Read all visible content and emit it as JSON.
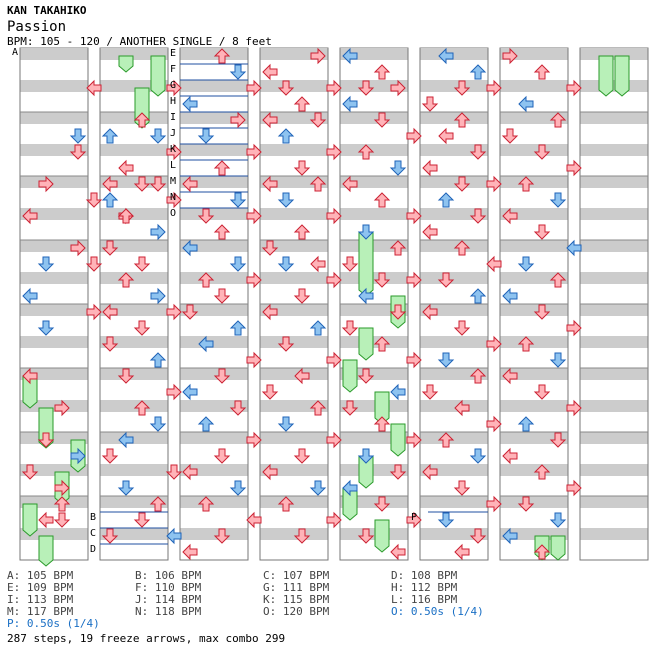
{
  "header": {
    "artist": "KAN TAKAHIKO",
    "title": "Passion",
    "info": "BPM: 105 - 120 / ANOTHER SINGLE / 8 feet"
  },
  "markers": [
    "A",
    "B",
    "C",
    "D",
    "E",
    "F",
    "G",
    "H",
    "I",
    "J",
    "K",
    "L",
    "M",
    "N",
    "O",
    "P"
  ],
  "legend": [
    {
      "text": "A: 105 BPM",
      "type": "bpm"
    },
    {
      "text": "B: 106 BPM",
      "type": "bpm"
    },
    {
      "text": "C: 107 BPM",
      "type": "bpm"
    },
    {
      "text": "D: 108 BPM",
      "type": "bpm"
    },
    {
      "text": "E: 109 BPM",
      "type": "bpm"
    },
    {
      "text": "F: 110 BPM",
      "type": "bpm"
    },
    {
      "text": "G: 111 BPM",
      "type": "bpm"
    },
    {
      "text": "H: 112 BPM",
      "type": "bpm"
    },
    {
      "text": "I: 113 BPM",
      "type": "bpm"
    },
    {
      "text": "J: 114 BPM",
      "type": "bpm"
    },
    {
      "text": "K: 115 BPM",
      "type": "bpm"
    },
    {
      "text": "L: 116 BPM",
      "type": "bpm"
    },
    {
      "text": "M: 117 BPM",
      "type": "bpm"
    },
    {
      "text": "N: 118 BPM",
      "type": "bpm"
    },
    {
      "text": "O: 120 BPM",
      "type": "bpm"
    },
    {
      "text": "O: 0.50s (1/4)",
      "type": "stop"
    },
    {
      "text": "P: 0.50s (1/4)",
      "type": "stop"
    }
  ],
  "summary": "287 steps, 19 freeze arrows, max combo 299",
  "colors": {
    "red": "#ffb3b8",
    "red_stroke": "#cc2233",
    "blue": "#8ec3f0",
    "blue_stroke": "#1f63b8",
    "freeze": "#b8f0b8",
    "freeze_stroke": "#2a9a2a",
    "band": "#cccccc",
    "line": "#1f4fa0"
  },
  "columns": [
    {
      "notes": [
        [
          1,
          8,
          "R"
        ],
        [
          4,
          2,
          "L"
        ],
        [
          3,
          5,
          "D"
        ],
        [
          5,
          5,
          "U"
        ],
        [
          3,
          6,
          "D"
        ],
        [
          4,
          9,
          "D"
        ],
        [
          5,
          9,
          "U"
        ],
        [
          6,
          10,
          "R"
        ],
        [
          0,
          10,
          "L"
        ],
        [
          3,
          12,
          "R"
        ],
        [
          1,
          13,
          "D"
        ],
        [
          4,
          13,
          "D"
        ],
        [
          0,
          15,
          "L"
        ],
        [
          1,
          17,
          "D"
        ],
        [
          4,
          16,
          "R"
        ],
        [
          0,
          20,
          "L"
        ],
        [
          2,
          22,
          "R"
        ],
        [
          1,
          24,
          "D"
        ],
        [
          0,
          26,
          "D"
        ],
        [
          3,
          25,
          "R"
        ],
        [
          2,
          27,
          "R"
        ],
        [
          2,
          28,
          "U"
        ],
        [
          1,
          29,
          "L"
        ],
        [
          2,
          29,
          "D"
        ]
      ],
      "freezes": [
        [
          0,
          20,
          22.5
        ],
        [
          1,
          22,
          25
        ],
        [
          3,
          24,
          26.5
        ],
        [
          2,
          26,
          28.5
        ],
        [
          0,
          28,
          30.5
        ],
        [
          1,
          30,
          33
        ]
      ]
    },
    {
      "notes": [
        [
          4,
          2,
          "R"
        ],
        [
          2,
          4,
          "U"
        ],
        [
          3,
          5,
          "D"
        ],
        [
          4,
          6,
          "R"
        ],
        [
          1,
          7,
          "L"
        ],
        [
          2,
          8,
          "D"
        ],
        [
          0,
          8,
          "L"
        ],
        [
          3,
          8,
          "D"
        ],
        [
          4,
          9,
          "R"
        ],
        [
          1,
          10,
          "U"
        ],
        [
          3,
          11,
          "R"
        ],
        [
          0,
          12,
          "D"
        ],
        [
          2,
          13,
          "D"
        ],
        [
          1,
          14,
          "U"
        ],
        [
          3,
          15,
          "R"
        ],
        [
          0,
          16,
          "L"
        ],
        [
          4,
          16,
          "R"
        ],
        [
          2,
          17,
          "D"
        ],
        [
          0,
          18,
          "D"
        ],
        [
          3,
          19,
          "U"
        ],
        [
          1,
          20,
          "D"
        ],
        [
          4,
          21,
          "R"
        ],
        [
          2,
          22,
          "U"
        ],
        [
          3,
          23,
          "D"
        ],
        [
          1,
          24,
          "L"
        ],
        [
          0,
          25,
          "D"
        ],
        [
          4,
          26,
          "D"
        ],
        [
          1,
          27,
          "D"
        ],
        [
          3,
          28,
          "U"
        ],
        [
          2,
          29,
          "D"
        ],
        [
          4,
          30,
          "L"
        ],
        [
          0,
          30,
          "D"
        ]
      ],
      "freezes": [
        [
          1,
          0,
          1.5
        ],
        [
          3,
          0,
          3
        ],
        [
          2,
          2,
          5
        ]
      ]
    },
    {
      "notes": [
        [
          2,
          0,
          "U"
        ],
        [
          3,
          1,
          "D"
        ],
        [
          4,
          2,
          "R"
        ],
        [
          0,
          3,
          "L"
        ],
        [
          3,
          4,
          "R"
        ],
        [
          1,
          5,
          "D"
        ],
        [
          4,
          6,
          "R"
        ],
        [
          2,
          7,
          "U"
        ],
        [
          0,
          8,
          "L"
        ],
        [
          3,
          9,
          "D"
        ],
        [
          1,
          10,
          "D"
        ],
        [
          4,
          10,
          "R"
        ],
        [
          2,
          11,
          "U"
        ],
        [
          0,
          12,
          "L"
        ],
        [
          3,
          13,
          "D"
        ],
        [
          1,
          14,
          "U"
        ],
        [
          4,
          14,
          "R"
        ],
        [
          2,
          15,
          "D"
        ],
        [
          0,
          16,
          "D"
        ],
        [
          3,
          17,
          "U"
        ],
        [
          1,
          18,
          "L"
        ],
        [
          4,
          19,
          "R"
        ],
        [
          2,
          20,
          "D"
        ],
        [
          0,
          21,
          "L"
        ],
        [
          3,
          22,
          "D"
        ],
        [
          1,
          23,
          "U"
        ],
        [
          4,
          24,
          "R"
        ],
        [
          2,
          25,
          "D"
        ],
        [
          0,
          26,
          "L"
        ],
        [
          3,
          27,
          "D"
        ],
        [
          1,
          28,
          "U"
        ],
        [
          4,
          29,
          "L"
        ],
        [
          2,
          30,
          "D"
        ],
        [
          0,
          31,
          "L"
        ]
      ],
      "freezes": []
    },
    {
      "notes": [
        [
          0,
          1,
          "L"
        ],
        [
          3,
          0,
          "R"
        ],
        [
          1,
          2,
          "D"
        ],
        [
          4,
          2,
          "R"
        ],
        [
          2,
          3,
          "U"
        ],
        [
          0,
          4,
          "L"
        ],
        [
          3,
          4,
          "D"
        ],
        [
          1,
          5,
          "U"
        ],
        [
          4,
          6,
          "R"
        ],
        [
          2,
          7,
          "D"
        ],
        [
          0,
          8,
          "L"
        ],
        [
          3,
          8,
          "U"
        ],
        [
          1,
          9,
          "D"
        ],
        [
          4,
          10,
          "R"
        ],
        [
          2,
          11,
          "U"
        ],
        [
          0,
          12,
          "D"
        ],
        [
          3,
          13,
          "L"
        ],
        [
          1,
          13,
          "D"
        ],
        [
          4,
          14,
          "R"
        ],
        [
          2,
          15,
          "D"
        ],
        [
          0,
          16,
          "L"
        ],
        [
          3,
          17,
          "U"
        ],
        [
          1,
          18,
          "D"
        ],
        [
          4,
          19,
          "R"
        ],
        [
          2,
          20,
          "L"
        ],
        [
          0,
          21,
          "D"
        ],
        [
          3,
          22,
          "U"
        ],
        [
          1,
          23,
          "D"
        ],
        [
          4,
          24,
          "R"
        ],
        [
          2,
          25,
          "D"
        ],
        [
          0,
          26,
          "L"
        ],
        [
          3,
          27,
          "D"
        ],
        [
          1,
          28,
          "U"
        ],
        [
          4,
          29,
          "R"
        ],
        [
          2,
          30,
          "D"
        ]
      ],
      "freezes": []
    },
    {
      "notes": [
        [
          0,
          0,
          "L"
        ],
        [
          2,
          1,
          "U"
        ],
        [
          1,
          2,
          "D"
        ],
        [
          3,
          2,
          "R"
        ],
        [
          0,
          3,
          "L"
        ],
        [
          2,
          4,
          "D"
        ],
        [
          4,
          5,
          "R"
        ],
        [
          1,
          6,
          "U"
        ],
        [
          3,
          7,
          "D"
        ],
        [
          0,
          8,
          "L"
        ],
        [
          2,
          9,
          "U"
        ],
        [
          4,
          10,
          "R"
        ],
        [
          1,
          11,
          "D"
        ],
        [
          3,
          12,
          "U"
        ],
        [
          0,
          13,
          "D"
        ],
        [
          2,
          14,
          "D"
        ],
        [
          4,
          14,
          "R"
        ],
        [
          1,
          15,
          "L"
        ],
        [
          3,
          16,
          "D"
        ],
        [
          0,
          17,
          "D"
        ],
        [
          2,
          18,
          "U"
        ],
        [
          4,
          19,
          "R"
        ],
        [
          1,
          20,
          "D"
        ],
        [
          3,
          21,
          "L"
        ],
        [
          0,
          22,
          "D"
        ],
        [
          2,
          23,
          "U"
        ],
        [
          4,
          24,
          "R"
        ],
        [
          1,
          25,
          "D"
        ],
        [
          3,
          26,
          "D"
        ],
        [
          0,
          27,
          "L"
        ],
        [
          2,
          28,
          "D"
        ],
        [
          4,
          29,
          "R"
        ],
        [
          1,
          30,
          "D"
        ],
        [
          3,
          31,
          "L"
        ]
      ],
      "freezes": [
        [
          1,
          11,
          15.5
        ],
        [
          3,
          15,
          17.5
        ],
        [
          1,
          17,
          19.5
        ],
        [
          0,
          19,
          21.5
        ],
        [
          2,
          21,
          23.5
        ],
        [
          3,
          23,
          25.5
        ],
        [
          1,
          25,
          27.5
        ],
        [
          0,
          27,
          29.5
        ],
        [
          2,
          29,
          31.5
        ]
      ]
    },
    {
      "notes": [
        [
          1,
          0,
          "L"
        ],
        [
          3,
          1,
          "U"
        ],
        [
          2,
          2,
          "D"
        ],
        [
          4,
          2,
          "R"
        ],
        [
          0,
          3,
          "D"
        ],
        [
          2,
          4,
          "U"
        ],
        [
          1,
          5,
          "L"
        ],
        [
          3,
          6,
          "D"
        ],
        [
          0,
          7,
          "L"
        ],
        [
          2,
          8,
          "D"
        ],
        [
          4,
          8,
          "R"
        ],
        [
          1,
          9,
          "U"
        ],
        [
          3,
          10,
          "D"
        ],
        [
          0,
          11,
          "L"
        ],
        [
          2,
          12,
          "U"
        ],
        [
          4,
          13,
          "L"
        ],
        [
          1,
          14,
          "D"
        ],
        [
          3,
          15,
          "U"
        ],
        [
          0,
          16,
          "L"
        ],
        [
          2,
          17,
          "D"
        ],
        [
          4,
          18,
          "R"
        ],
        [
          1,
          19,
          "D"
        ],
        [
          3,
          20,
          "U"
        ],
        [
          0,
          21,
          "D"
        ],
        [
          2,
          22,
          "L"
        ],
        [
          4,
          23,
          "R"
        ],
        [
          1,
          24,
          "U"
        ],
        [
          3,
          25,
          "D"
        ],
        [
          0,
          26,
          "L"
        ],
        [
          2,
          27,
          "D"
        ],
        [
          4,
          28,
          "R"
        ],
        [
          1,
          29,
          "D"
        ],
        [
          3,
          30,
          "D"
        ],
        [
          2,
          31,
          "L"
        ]
      ],
      "freezes": []
    },
    {
      "notes": [
        [
          0,
          0,
          "R"
        ],
        [
          2,
          1,
          "U"
        ],
        [
          4,
          2,
          "R"
        ],
        [
          1,
          3,
          "L"
        ],
        [
          3,
          4,
          "U"
        ],
        [
          0,
          5,
          "D"
        ],
        [
          2,
          6,
          "D"
        ],
        [
          4,
          7,
          "R"
        ],
        [
          1,
          8,
          "U"
        ],
        [
          3,
          9,
          "D"
        ],
        [
          0,
          10,
          "L"
        ],
        [
          2,
          11,
          "D"
        ],
        [
          4,
          12,
          "L"
        ],
        [
          1,
          13,
          "D"
        ],
        [
          3,
          14,
          "U"
        ],
        [
          0,
          15,
          "L"
        ],
        [
          2,
          16,
          "D"
        ],
        [
          4,
          17,
          "R"
        ],
        [
          1,
          18,
          "U"
        ],
        [
          3,
          19,
          "D"
        ],
        [
          0,
          20,
          "L"
        ],
        [
          2,
          21,
          "D"
        ],
        [
          4,
          22,
          "R"
        ],
        [
          1,
          23,
          "U"
        ],
        [
          3,
          24,
          "D"
        ],
        [
          0,
          25,
          "L"
        ],
        [
          2,
          26,
          "U"
        ],
        [
          4,
          27,
          "R"
        ],
        [
          1,
          28,
          "D"
        ],
        [
          3,
          29,
          "D"
        ],
        [
          0,
          30,
          "L"
        ],
        [
          2,
          31,
          "U"
        ]
      ],
      "freezes": [
        [
          2,
          30,
          32
        ],
        [
          3,
          30,
          32
        ]
      ]
    },
    {
      "notes": [],
      "freezes": [
        [
          1,
          0,
          3
        ],
        [
          2,
          0,
          3
        ]
      ]
    }
  ]
}
